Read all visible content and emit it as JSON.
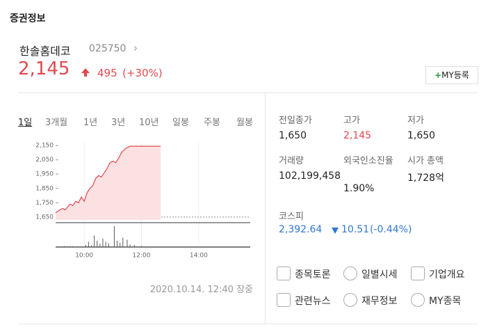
{
  "header": {
    "title": "증권정보"
  },
  "stock": {
    "name": "한솔홈데코",
    "code": "025750",
    "price": "2,145",
    "change": "495",
    "change_pct": "(+30%)",
    "my_button": "MY등록"
  },
  "tabs": [
    "1일",
    "3개월",
    "1년",
    "3년",
    "10년",
    "일봉",
    "주봉",
    "월봉"
  ],
  "chart_data": {
    "type": "line",
    "color": "#e0484e",
    "fill": "#fbe1e1",
    "x": [
      9.0,
      9.08,
      9.15,
      9.25,
      9.33,
      9.42,
      9.5,
      9.6,
      9.7,
      9.8,
      9.9,
      10.0,
      10.1,
      10.2,
      10.3,
      10.4,
      10.5,
      10.6,
      10.7,
      10.8,
      10.9,
      11.0,
      11.1,
      11.2,
      11.3,
      11.45,
      11.6,
      12.67
    ],
    "values": [
      1680,
      1690,
      1700,
      1710,
      1700,
      1720,
      1740,
      1730,
      1760,
      1750,
      1790,
      1760,
      1820,
      1850,
      1870,
      1920,
      1940,
      1930,
      1960,
      1990,
      2030,
      2040,
      2030,
      2060,
      2100,
      2130,
      2145,
      2145
    ],
    "xlim": [
      9,
      15.8
    ],
    "ylim": [
      1630,
      2170
    ],
    "yticks": [
      {
        "value": 1650,
        "label": "1,650"
      },
      {
        "value": 1750,
        "label": "1,750"
      },
      {
        "value": 1850,
        "label": "1,850"
      },
      {
        "value": 1950,
        "label": "1,950"
      },
      {
        "value": 2050,
        "label": "2,050"
      },
      {
        "value": 2150,
        "label": "2,150"
      }
    ],
    "xticks": [
      {
        "value": 10,
        "label": "10:00"
      },
      {
        "value": 12,
        "label": "12:00"
      },
      {
        "value": 14,
        "label": "14:00"
      }
    ],
    "volume": {
      "x": [
        9.2,
        9.3,
        9.4,
        9.5,
        9.6,
        10.05,
        10.15,
        10.25,
        10.35,
        10.45,
        10.55,
        10.65,
        10.75,
        10.85,
        11.05,
        11.15,
        11.25,
        11.35,
        11.5,
        11.6,
        11.75,
        12.0
      ],
      "values": [
        3,
        5,
        4,
        3,
        4,
        10,
        25,
        8,
        55,
        30,
        15,
        40,
        25,
        18,
        100,
        30,
        20,
        45,
        35,
        12,
        10,
        5
      ],
      "ylim": [
        0,
        100
      ]
    }
  },
  "stats": [
    {
      "label": "전일종가",
      "value": "1,650"
    },
    {
      "label": "고가",
      "value": "2,145"
    },
    {
      "label": "저가",
      "value": "1,650"
    },
    {
      "label": "거래량",
      "value": "102,199,458"
    },
    {
      "label": "외국인소진율",
      "value": "1.90%"
    },
    {
      "label": "시가 총액",
      "value": "1,728억"
    }
  ],
  "index": {
    "label": "코스피",
    "value": "2,392.64",
    "change": "10.51",
    "change_pct": "(-0.44%)"
  },
  "timestamp": "2020.10.14. 12:40 장중",
  "links": [
    "종목토론",
    "일별시세",
    "기업개요",
    "관련뉴스",
    "재무정보",
    "MY종목"
  ]
}
